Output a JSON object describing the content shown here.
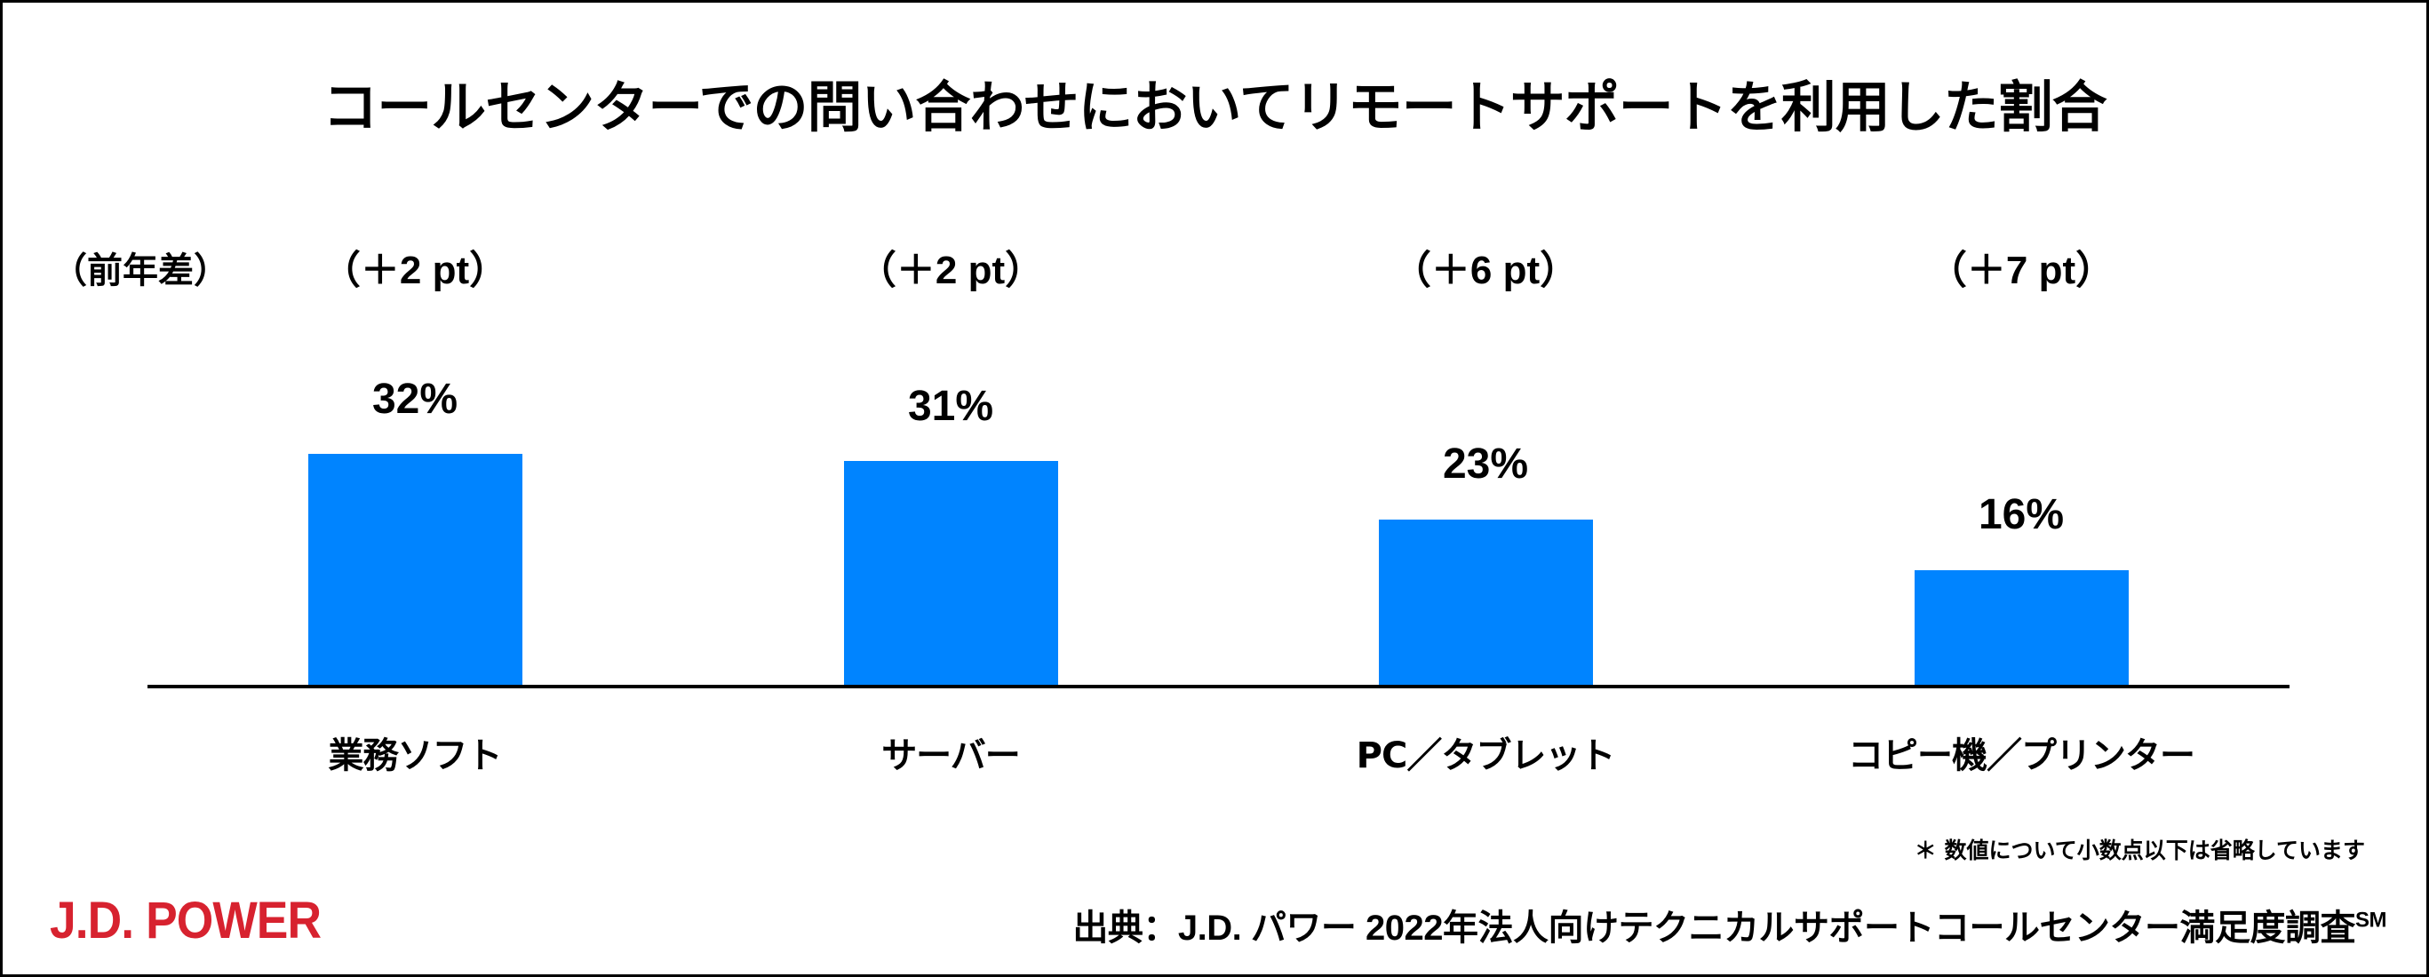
{
  "title": "コールセンターでの問い合わせにおいてリモートサポートを利用した割合",
  "yoy_header": "（前年差）",
  "colors": {
    "bar": "#0084FF",
    "logo": "#D7222F",
    "text": "#000000"
  },
  "chart_data": {
    "type": "bar",
    "title": "コールセンターでの問い合わせにおいてリモートサポートを利用した割合",
    "xlabel": "",
    "ylabel": "",
    "ylim": [
      0,
      35
    ],
    "grid": false,
    "legend": null,
    "categories": [
      "業務ソフト",
      "サーバー",
      "PC／タブレット",
      "コピー機／プリンター"
    ],
    "values": [
      32,
      31,
      23,
      16
    ],
    "value_labels": [
      "32%",
      "31%",
      "23%",
      "16%"
    ],
    "yoy_change_pt": [
      2,
      2,
      6,
      7
    ],
    "yoy_labels": [
      "（＋2 pt）",
      "（＋2 pt）",
      "（＋6 pt）",
      "（＋7 pt）"
    ],
    "annotations": [
      "（前年差）",
      "＊ 数値について小数点以下は省略しています"
    ]
  },
  "bars": [
    {
      "category": "業務ソフト",
      "value_label": "32%",
      "yoy": "（＋2 pt）",
      "value": 32
    },
    {
      "category": "サーバー",
      "value_label": "31%",
      "yoy": "（＋2 pt）",
      "value": 31
    },
    {
      "category": "PC／タブレット",
      "value_label": "23%",
      "yoy": "（＋6 pt）",
      "value": 23
    },
    {
      "category": "コピー機／プリンター",
      "value_label": "16%",
      "yoy": "（＋7 pt）",
      "value": 16
    }
  ],
  "footnote": "＊ 数値について小数点以下は省略しています",
  "source": "出典：J.D. パワー 2022年法人向けテクニカルサポートコールセンター満足度調査",
  "source_mark": "SM",
  "logo": "J.D. POWER"
}
